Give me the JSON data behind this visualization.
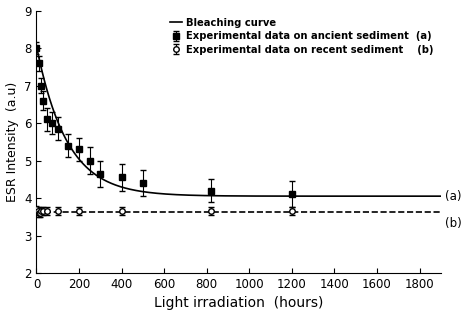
{
  "title": "",
  "xlabel": "Light irradiation  (hours)",
  "ylabel": "ESR Intensity  (a.u)",
  "xlim": [
    0,
    1900
  ],
  "ylim": [
    2,
    9
  ],
  "yticks": [
    2,
    3,
    4,
    5,
    6,
    7,
    8,
    9
  ],
  "xticks": [
    0,
    200,
    400,
    600,
    800,
    1000,
    1200,
    1400,
    1600,
    1800
  ],
  "ancient_x": [
    0,
    10,
    20,
    30,
    50,
    75,
    100,
    150,
    200,
    250,
    300,
    400,
    500,
    820,
    1200
  ],
  "ancient_y": [
    8.0,
    7.6,
    7.0,
    6.6,
    6.1,
    6.0,
    5.85,
    5.4,
    5.3,
    5.0,
    4.65,
    4.55,
    4.4,
    4.2,
    4.1
  ],
  "ancient_yerr": [
    0.15,
    0.2,
    0.2,
    0.25,
    0.3,
    0.3,
    0.3,
    0.3,
    0.3,
    0.35,
    0.35,
    0.35,
    0.35,
    0.3,
    0.35
  ],
  "recent_x": [
    0,
    5,
    10,
    15,
    20,
    30,
    50,
    100,
    200,
    400,
    820,
    1200
  ],
  "recent_y": [
    3.7,
    3.65,
    3.6,
    3.6,
    3.65,
    3.65,
    3.65,
    3.65,
    3.65,
    3.65,
    3.65,
    3.65
  ],
  "recent_yerr": [
    0.1,
    0.1,
    0.1,
    0.1,
    0.1,
    0.1,
    0.1,
    0.1,
    0.1,
    0.1,
    0.1,
    0.1
  ],
  "bleaching_asymptote": 4.05,
  "bleaching_amplitude": 4.0,
  "bleaching_decay": 0.007,
  "recent_asymptote": 3.62,
  "legend_ancient": "Experimental data on ancient sediment  (a)",
  "legend_bleaching": "Bleaching curve",
  "legend_recent": "Experimental data on recent sediment    (b)",
  "annotation_a": "(a)",
  "annotation_b": "(b)",
  "background_color": "#ffffff",
  "line_color": "#000000",
  "dashed_color": "#000000"
}
